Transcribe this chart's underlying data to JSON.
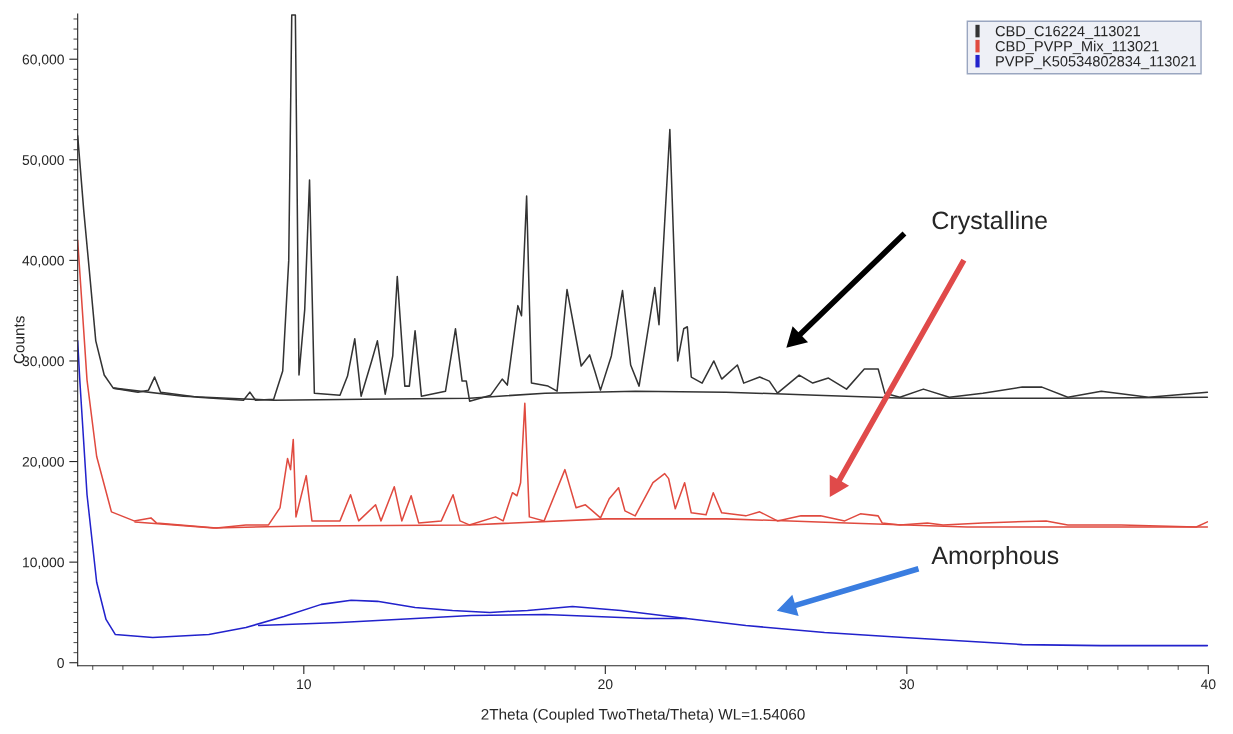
{
  "chart_data": {
    "type": "line",
    "xlabel": "2Theta (Coupled TwoTheta/Theta) WL=1.54060",
    "ylabel": "Counts",
    "xlim": [
      2.5,
      40
    ],
    "xticks": [
      10,
      20,
      30,
      40
    ],
    "ylim": [
      -300,
      64500
    ],
    "yticks": [
      0,
      {
        "value": 10000,
        "label": "10,000"
      },
      {
        "value": 20000,
        "label": "20,000"
      },
      {
        "value": 30000,
        "label": "30,000"
      },
      {
        "value": 40000,
        "label": "40,000"
      },
      {
        "value": 50000,
        "label": "50,000"
      },
      {
        "value": 60000,
        "label": "60,000"
      }
    ],
    "grid": false,
    "legend": "top right",
    "marker": "none",
    "line_style": "solid",
    "series": [
      {
        "name": "CBD_C16224_113021",
        "color": "#333333",
        "x": [
          2.5,
          2.7,
          2.88,
          3.1,
          3.38,
          3.68,
          4.5,
          4.85,
          5.05,
          5.25,
          6.5,
          8.0,
          8.21,
          8.4,
          9.0,
          9.3,
          9.5,
          9.6,
          9.72,
          9.84,
          10.03,
          10.19,
          10.35,
          11.2,
          11.45,
          11.69,
          11.9,
          12.25,
          12.44,
          12.7,
          12.95,
          13.1,
          13.35,
          13.5,
          13.69,
          13.9,
          14.7,
          15.03,
          15.25,
          15.39,
          15.5,
          16.2,
          16.58,
          16.75,
          17.1,
          17.22,
          17.39,
          17.55,
          18.1,
          18.4,
          18.73,
          19.2,
          19.48,
          19.65,
          19.84,
          20.2,
          20.57,
          20.84,
          21.12,
          21.64,
          21.78,
          22.14,
          22.4,
          22.6,
          22.72,
          22.85,
          23.21,
          23.6,
          23.86,
          24.38,
          24.59,
          25.12,
          25.44,
          25.71,
          26.43,
          26.88,
          27.4,
          28.0,
          28.59,
          29.05,
          29.27,
          29.77,
          30.55,
          31.41,
          32.52,
          33.83,
          34.48,
          35.34,
          36.45,
          38.02,
          39.97
        ],
        "values": [
          52400,
          45000,
          39200,
          32000,
          28600,
          27300,
          26900,
          27100,
          28400,
          26900,
          26400,
          26100,
          26900,
          26100,
          26200,
          29000,
          40000,
          64400,
          64400,
          28600,
          35100,
          48000,
          26800,
          26600,
          28500,
          32200,
          26500,
          30000,
          32000,
          26700,
          30500,
          38400,
          27500,
          27500,
          33000,
          26500,
          27000,
          33200,
          28000,
          28000,
          26000,
          26600,
          28200,
          27600,
          35500,
          34500,
          46400,
          27800,
          27500,
          27000,
          37100,
          29500,
          30600,
          29000,
          27100,
          30500,
          37000,
          29600,
          27500,
          37300,
          33600,
          53000,
          30000,
          33200,
          33400,
          28400,
          27800,
          30000,
          28200,
          29600,
          27800,
          28400,
          28000,
          26800,
          28600,
          27800,
          28300,
          27200,
          29200,
          29200,
          26800,
          26400,
          27200,
          26400,
          26800,
          27400,
          27400,
          26400,
          27000,
          26400,
          26900
        ]
      },
      {
        "color": "#333333",
        "x": [
          3.7,
          6,
          9,
          12,
          15.5,
          18,
          21,
          24,
          27,
          30,
          35,
          39.97
        ],
        "values": [
          27300,
          26500,
          26100,
          26200,
          26300,
          26800,
          27000,
          26900,
          26600,
          26300,
          26300,
          26400
        ]
      },
      {
        "name": "CBD_PVPP_Mix_113021",
        "color": "#e04a3f",
        "x": [
          2.5,
          2.81,
          3.13,
          3.62,
          4.37,
          4.93,
          5.11,
          7.1,
          8.08,
          8.83,
          9.21,
          9.46,
          9.56,
          9.65,
          9.74,
          10.08,
          10.27,
          11.2,
          11.55,
          11.82,
          12.38,
          12.56,
          13.0,
          13.25,
          13.56,
          13.81,
          14.56,
          14.95,
          15.18,
          15.49,
          16.36,
          16.61,
          16.92,
          17.07,
          17.19,
          17.33,
          17.48,
          17.97,
          18.66,
          19.03,
          19.34,
          19.84,
          20.13,
          20.44,
          20.65,
          20.99,
          21.58,
          21.97,
          22.1,
          22.32,
          22.63,
          22.85,
          23.34,
          23.58,
          23.86,
          24.66,
          25.12,
          25.71,
          26.49,
          27.14,
          27.94,
          28.46,
          29.05,
          29.18,
          29.77,
          30.68,
          31.2,
          32.52,
          34.62,
          35.34,
          37.11,
          39.6,
          39.97
        ],
        "values": [
          42000,
          28100,
          20500,
          15000,
          14100,
          14400,
          13900,
          13400,
          13700,
          13700,
          15400,
          20300,
          19200,
          22200,
          14500,
          18600,
          14100,
          14100,
          16700,
          14100,
          15700,
          14100,
          17500,
          14100,
          16600,
          13900,
          14100,
          16700,
          14100,
          13700,
          14500,
          14100,
          16900,
          16600,
          17900,
          25800,
          14500,
          14100,
          19200,
          15400,
          15700,
          14400,
          16300,
          17400,
          15100,
          14600,
          17900,
          18800,
          18300,
          15300,
          17900,
          14900,
          14700,
          16900,
          14900,
          14600,
          15000,
          14100,
          14600,
          14600,
          14100,
          14800,
          14600,
          13900,
          13700,
          13900,
          13700,
          13900,
          14100,
          13700,
          13700,
          13500,
          14000
        ]
      },
      {
        "color": "#e04a3f",
        "x": [
          4.4,
          7,
          10,
          15.5,
          20,
          24,
          28,
          32,
          39.97
        ],
        "values": [
          14000,
          13400,
          13600,
          13700,
          14300,
          14300,
          13900,
          13500,
          13500
        ]
      },
      {
        "name": "PVPP_K50534802834_113021",
        "color": "#2222cc",
        "x": [
          2.5,
          2.57,
          2.81,
          3.13,
          3.44,
          3.75,
          4.99,
          6.85,
          8.08,
          9.34,
          10.58,
          11.57,
          12.44,
          13.69,
          14.93,
          16.17,
          17.42,
          18.91,
          20.52,
          22.69,
          24.66,
          27.27,
          29.9,
          33.83,
          36.45,
          39.97
        ],
        "values": [
          32000,
          28100,
          16700,
          8000,
          4300,
          2800,
          2500,
          2800,
          3500,
          4600,
          5800,
          6200,
          6100,
          5500,
          5200,
          5000,
          5200,
          5600,
          5200,
          4400,
          3700,
          3000,
          2500,
          1800,
          1700,
          1700
        ]
      },
      {
        "color": "#2222cc",
        "x": [
          8.5,
          11.2,
          15.55,
          18,
          21.36,
          22.69
        ],
        "values": [
          3700,
          4000,
          4700,
          4800,
          4400,
          4400
        ]
      }
    ],
    "annotations": [
      "Crystalline",
      "Amorphous"
    ]
  }
}
